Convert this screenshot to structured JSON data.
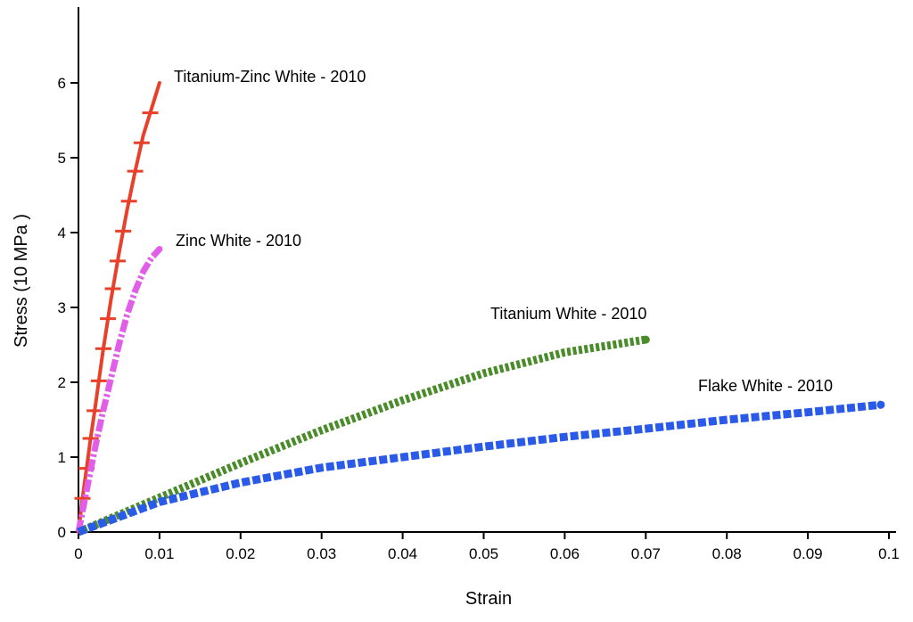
{
  "chart_data": {
    "type": "line",
    "title": "",
    "xlabel": "Strain",
    "ylabel": "Stress (10 MPa )",
    "xlim": [
      0,
      0.1
    ],
    "ylim": [
      0,
      7
    ],
    "x_ticks": [
      {
        "value": 0,
        "label": "0"
      },
      {
        "value": 0.01,
        "label": "0.01"
      },
      {
        "value": 0.02,
        "label": "0.02"
      },
      {
        "value": 0.03,
        "label": "0.03"
      },
      {
        "value": 0.04,
        "label": "0.04"
      },
      {
        "value": 0.05,
        "label": "0.05"
      },
      {
        "value": 0.06,
        "label": "0.06"
      },
      {
        "value": 0.07,
        "label": "0.07"
      },
      {
        "value": 0.08,
        "label": "0.08"
      },
      {
        "value": 0.09,
        "label": "0.09"
      },
      {
        "value": 0.1,
        "label": "0.1"
      }
    ],
    "y_ticks": [
      {
        "value": 0,
        "label": "0"
      },
      {
        "value": 1,
        "label": "1"
      },
      {
        "value": 2,
        "label": "2"
      },
      {
        "value": 3,
        "label": "3"
      },
      {
        "value": 4,
        "label": "4"
      },
      {
        "value": 5,
        "label": "5"
      },
      {
        "value": 6,
        "label": "6"
      }
    ],
    "grid": false,
    "series": [
      {
        "name": "Titanium-Zinc White - 2010",
        "color": "#e8402a",
        "style": "solid-with-crossbars",
        "x": [
          0,
          0.0005,
          0.001,
          0.0015,
          0.002,
          0.003,
          0.004,
          0.005,
          0.006,
          0.007,
          0.008,
          0.009,
          0.01
        ],
        "y": [
          0,
          0.45,
          0.85,
          1.25,
          1.62,
          2.4,
          3.1,
          3.72,
          4.3,
          4.82,
          5.3,
          5.65,
          6.0
        ]
      },
      {
        "name": "Zinc White - 2010",
        "color": "#e05ee8",
        "style": "dash-dot",
        "x": [
          0,
          0.001,
          0.002,
          0.003,
          0.004,
          0.005,
          0.006,
          0.007,
          0.008,
          0.009,
          0.01
        ],
        "y": [
          0,
          0.55,
          1.1,
          1.6,
          2.05,
          2.5,
          2.9,
          3.22,
          3.48,
          3.66,
          3.78
        ]
      },
      {
        "name": "Titanium White - 2010",
        "color": "#4a8c2a",
        "style": "dotted",
        "x": [
          0,
          0.005,
          0.01,
          0.02,
          0.03,
          0.04,
          0.05,
          0.06,
          0.07
        ],
        "y": [
          0,
          0.23,
          0.46,
          0.92,
          1.36,
          1.76,
          2.12,
          2.4,
          2.57
        ]
      },
      {
        "name": "Flake White - 2010",
        "color": "#2a5ae8",
        "style": "dashed",
        "x": [
          0,
          0.005,
          0.01,
          0.02,
          0.03,
          0.04,
          0.05,
          0.06,
          0.07,
          0.08,
          0.09,
          0.099
        ],
        "y": [
          0,
          0.2,
          0.4,
          0.66,
          0.86,
          1.0,
          1.14,
          1.27,
          1.38,
          1.5,
          1.6,
          1.7
        ]
      }
    ]
  }
}
